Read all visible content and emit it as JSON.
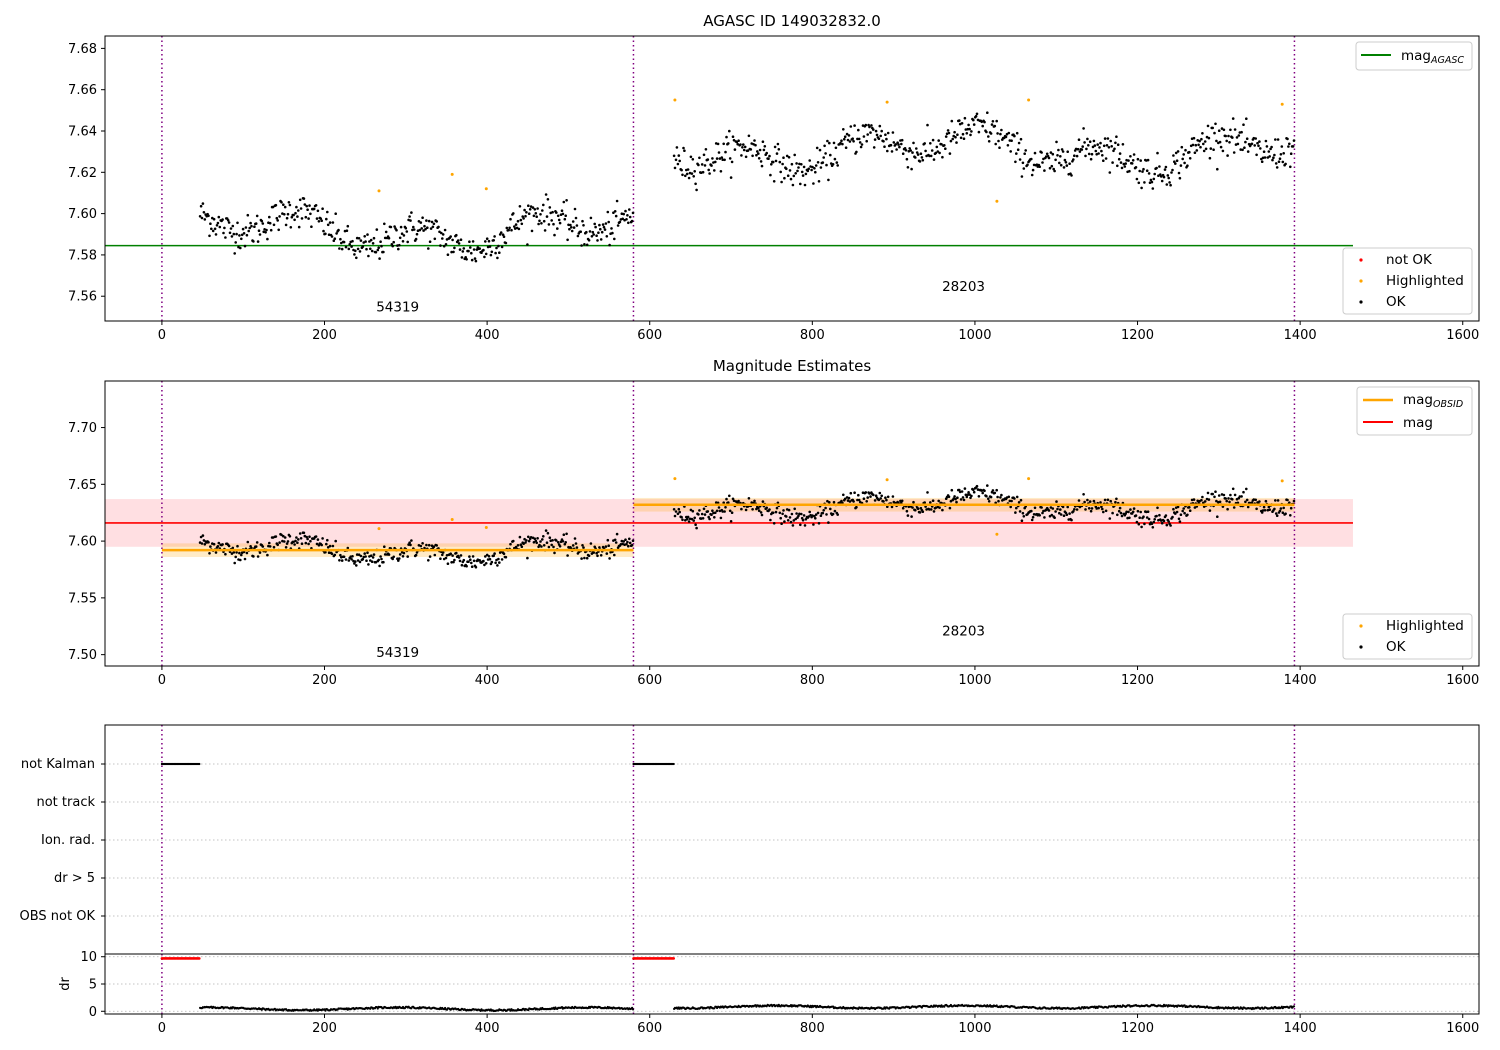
{
  "colors": {
    "ok": "#000000",
    "highlighted": "#ffa500",
    "not_ok": "#ff0000",
    "agasc_line": "#008000",
    "obsid_line": "#ffa500",
    "mag_line": "#ff0000",
    "mag_band": "#ffc0c6",
    "obs_boundary": "#800080",
    "grid": "#b0b0b0"
  },
  "chart_data": [
    {
      "type": "scatter",
      "title": "AGASC ID 149032832.0",
      "xlim": [
        -70,
        1620
      ],
      "ylim": [
        7.548,
        7.686
      ],
      "xticks": [
        0,
        200,
        400,
        600,
        800,
        1000,
        1200,
        1400,
        1600
      ],
      "yticks": [
        7.56,
        7.58,
        7.6,
        7.62,
        7.64,
        7.66,
        7.68
      ],
      "obs_boundaries": [
        0,
        580,
        1393
      ],
      "obs_labels": [
        {
          "text": "54319",
          "x": 290,
          "y": 7.5525
        },
        {
          "text": "28203",
          "x": 986,
          "y": 7.5625
        }
      ],
      "mag_agasc": 7.5845,
      "mag_agasc_xrange": [
        -70,
        1465
      ],
      "segments": [
        {
          "x_start": 47,
          "x_end": 580,
          "mean": 7.592,
          "amp": 0.012,
          "scatter": 0.004
        },
        {
          "x_start": 630,
          "x_end": 1393,
          "mean": 7.631,
          "amp": 0.012,
          "scatter": 0.004
        }
      ],
      "highlighted_points": [
        {
          "x": 267,
          "y": 7.611
        },
        {
          "x": 357,
          "y": 7.619
        },
        {
          "x": 399,
          "y": 7.612
        },
        {
          "x": 631,
          "y": 7.655
        },
        {
          "x": 892,
          "y": 7.654
        },
        {
          "x": 1027,
          "y": 7.606
        },
        {
          "x": 1066,
          "y": 7.655
        },
        {
          "x": 1378,
          "y": 7.653
        }
      ],
      "legend_top": [
        "mag_AGASC"
      ],
      "legend_bottom": [
        "not OK",
        "Highlighted",
        "OK"
      ]
    },
    {
      "type": "scatter",
      "title": "Magnitude Estimates",
      "xlim": [
        -70,
        1620
      ],
      "ylim": [
        7.49,
        7.741
      ],
      "xticks": [
        0,
        200,
        400,
        600,
        800,
        1000,
        1200,
        1400,
        1600
      ],
      "yticks": [
        7.5,
        7.55,
        7.6,
        7.65,
        7.7
      ],
      "obs_boundaries": [
        0,
        580,
        1393
      ],
      "obs_labels": [
        {
          "text": "54319",
          "x": 290,
          "y": 7.498
        },
        {
          "text": "28203",
          "x": 986,
          "y": 7.517
        }
      ],
      "mag": 7.616,
      "mag_band": [
        7.595,
        7.637
      ],
      "mag_xrange": [
        -70,
        1465
      ],
      "mag_obsid": [
        {
          "x_start": 0,
          "x_end": 580,
          "value": 7.592,
          "err": 0.006
        },
        {
          "x_start": 580,
          "x_end": 1393,
          "value": 7.632,
          "err": 0.006
        }
      ],
      "legend_top": [
        "mag_OBSID",
        "mag"
      ],
      "legend_bottom": [
        "Highlighted",
        "OK"
      ]
    },
    {
      "type": "scatter",
      "xlim": [
        -70,
        1620
      ],
      "xticks": [
        0,
        200,
        400,
        600,
        800,
        1000,
        1200,
        1400,
        1600
      ],
      "flag_rows": [
        "not Kalman",
        "not track",
        "Ion. rad.",
        "dr > 5",
        "OBS not OK"
      ],
      "not_kalman_ranges": [
        [
          0,
          47
        ],
        [
          580,
          630
        ]
      ],
      "dr_ylim": [
        -0.5,
        10.5
      ],
      "dr_yticks": [
        0,
        5,
        10
      ],
      "dr_ylabel": "dr",
      "dr_high_value": 9.7,
      "dr_low_value": 0.3
    }
  ],
  "labels": {
    "title1": "AGASC ID 149032832.0",
    "title2": "Magnitude Estimates",
    "legend_mag_agasc": "mag",
    "legend_mag_agasc_sub": "AGASC",
    "legend_not_ok": "not OK",
    "legend_highlighted": "Highlighted",
    "legend_ok": "OK",
    "legend_mag_obsid": "mag",
    "legend_mag_obsid_sub": "OBSID",
    "legend_mag": "mag",
    "legend_highlighted2": "Highlighted",
    "legend_ok2": "OK",
    "flag_not_kalman": "not Kalman",
    "flag_not_track": "not track",
    "flag_ion_rad": "Ion. rad.",
    "flag_dr5": "dr > 5",
    "flag_obs_not_ok": "OBS not OK",
    "dr_label": "dr"
  }
}
